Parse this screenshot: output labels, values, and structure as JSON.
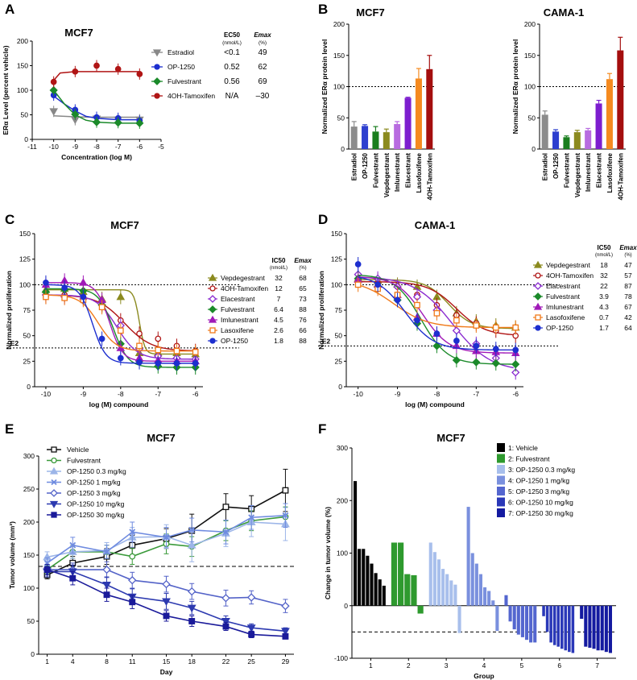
{
  "panels": {
    "A": {
      "letter": "A",
      "title": "MCF7",
      "type": "line",
      "xlabel": "Concentration (log M)",
      "ylabel": "ERα Level (percent vehicle)",
      "xlim": [
        -11,
        -5
      ],
      "ylim": [
        0,
        200
      ],
      "xticks": [
        -11,
        -10,
        -9,
        -8,
        -7,
        -6,
        -5
      ],
      "yticks": [
        0,
        50,
        100,
        150,
        200
      ],
      "header": {
        "ec50": "EC50",
        "ec50_unit": "(nmol/L)",
        "emax": "Emax",
        "emax_unit": "(%)"
      },
      "series": [
        {
          "name": "Estradiol",
          "ec50": "<0.1",
          "emax": "49",
          "color": "#888888",
          "marker": "triangle-down",
          "x": [
            -10,
            -9,
            -8,
            -7,
            -6
          ],
          "y": [
            57,
            40,
            42,
            40,
            40
          ],
          "fit": [
            [
              -10,
              48
            ],
            [
              -9,
              46
            ],
            [
              -8,
              45
            ],
            [
              -7,
              45
            ],
            [
              -6,
              45
            ]
          ]
        },
        {
          "name": "OP-1250",
          "ec50": "0.52",
          "emax": "62",
          "color": "#1d2fcf",
          "marker": "circle",
          "x": [
            -10,
            -9,
            -8,
            -7,
            -6
          ],
          "y": [
            90,
            60,
            45,
            43,
            38
          ],
          "fit": [
            [
              -10,
              88
            ],
            [
              -9.5,
              72
            ],
            [
              -9,
              58
            ],
            [
              -8.5,
              47
            ],
            [
              -8,
              43
            ],
            [
              -7,
              40
            ],
            [
              -6,
              40
            ]
          ]
        },
        {
          "name": "Fulvestrant",
          "ec50": "0.56",
          "emax": "69",
          "color": "#1b8a2a",
          "marker": "diamond",
          "x": [
            -10,
            -9,
            -8,
            -7,
            -6
          ],
          "y": [
            100,
            51,
            35,
            34,
            33
          ],
          "fit": [
            [
              -10,
              100
            ],
            [
              -9.5,
              72
            ],
            [
              -9,
              50
            ],
            [
              -8.5,
              39
            ],
            [
              -8,
              35
            ],
            [
              -7,
              33
            ],
            [
              -6,
              33
            ]
          ]
        },
        {
          "name": "4OH-Tamoxifen",
          "ec50": "N/A",
          "emax": "–30",
          "color": "#b01515",
          "marker": "circle",
          "x": [
            -10,
            -9,
            -8,
            -7,
            -6
          ],
          "y": [
            117,
            138,
            150,
            143,
            133
          ],
          "fit": [
            [
              -10,
              120
            ],
            [
              -9.7,
              135
            ],
            [
              -9,
              138
            ],
            [
              -6,
              138
            ]
          ]
        }
      ]
    },
    "B1": {
      "letter": "B",
      "title": "MCF7",
      "type": "bar",
      "ylabel": "Normalized ERα protein level",
      "ylim": [
        0,
        200
      ],
      "yticks": [
        0,
        50,
        100,
        150,
        200
      ],
      "reference_line": 100,
      "categories": [
        "Estradiol",
        "OP-1250",
        "Fulvestrant",
        "Vepdegestrant",
        "Imlunestrant",
        "Elacestrant",
        "Lasofoxifene",
        "4OH-Tamoxifen"
      ],
      "values": [
        36,
        37,
        28,
        27,
        40,
        82,
        113,
        128
      ],
      "errors": [
        8,
        2,
        8,
        5,
        4,
        1,
        16,
        22
      ],
      "colors": [
        "#8c8c8c",
        "#2d3fcf",
        "#1a7e1e",
        "#8b8a1f",
        "#b86be0",
        "#7d1ecf",
        "#f58a1f",
        "#a40e0e"
      ]
    },
    "B2": {
      "title": "CAMA-1",
      "type": "bar",
      "ylabel": "Normalized ERα protein level",
      "ylim": [
        0,
        200
      ],
      "yticks": [
        0,
        50,
        100,
        150,
        200
      ],
      "reference_line": 100,
      "categories": [
        "Estradiol",
        "OP-1250",
        "Fulvestrant",
        "Vepdegestrant",
        "Imlunestrant",
        "Elacestrant",
        "Lasofoxifene",
        "4OH-Tamoxifen"
      ],
      "values": [
        55,
        28,
        19,
        27,
        30,
        73,
        112,
        158
      ],
      "errors": [
        6,
        3,
        2,
        3,
        3,
        5,
        9,
        21
      ],
      "colors": [
        "#8c8c8c",
        "#2d3fcf",
        "#1a7e1e",
        "#8b8a1f",
        "#b86be0",
        "#7d1ecf",
        "#f58a1f",
        "#a40e0e"
      ]
    },
    "C": {
      "letter": "C",
      "title": "MCF7",
      "type": "line",
      "xlabel": "log (M) compound",
      "ylabel": "Normalized proliferation",
      "xlim": [
        -10.3,
        -5.8
      ],
      "ylim": [
        0,
        150
      ],
      "xticks": [
        -10,
        -9,
        -8,
        -7,
        -6
      ],
      "yticks": [
        0,
        25,
        50,
        75,
        100,
        125,
        150
      ],
      "ref_top": 100,
      "ref_e2": 38,
      "e2_label": "–E2",
      "header": {
        "ic50": "IC50",
        "ic50_unit": "(nmol/L)",
        "emax": "Emax",
        "emax_unit": "(%)"
      },
      "series": [
        {
          "name": "Vepdegestrant",
          "ic50": "32",
          "emax": "68",
          "color": "#8b8a1f",
          "marker": "triangle-up",
          "top": 95,
          "bottom": 32,
          "logec": -7.5,
          "hill": 6,
          "y": [
            95,
            96,
            93,
            86,
            88,
            33,
            33,
            33,
            32
          ]
        },
        {
          "name": "4OH-Tamoxifen",
          "ic50": "12",
          "emax": "65",
          "color": "#b01515",
          "marker": "circle-open",
          "top": 90,
          "bottom": 35,
          "logec": -7.9,
          "hill": 1.2,
          "y": [
            88,
            90,
            88,
            80,
            65,
            52,
            47,
            40,
            35
          ]
        },
        {
          "name": "Elacestrant",
          "ic50": "7",
          "emax": "73",
          "color": "#8a2bd0",
          "marker": "diamond-open",
          "top": 90,
          "bottom": 27,
          "logec": -8.1,
          "hill": 1.6,
          "y": [
            90,
            88,
            86,
            80,
            60,
            37,
            30,
            28,
            27
          ]
        },
        {
          "name": "Fulvestrant",
          "ic50": "6.4",
          "emax": "88",
          "color": "#1b8a2a",
          "marker": "diamond",
          "top": 96,
          "bottom": 19,
          "logec": -8.2,
          "hill": 2.2,
          "y": [
            93,
            95,
            94,
            80,
            42,
            25,
            20,
            19,
            19
          ]
        },
        {
          "name": "Imlunestrant",
          "ic50": "4.5",
          "emax": "76",
          "color": "#a01ab8",
          "marker": "triangle-up",
          "top": 102,
          "bottom": 25,
          "logec": -8.3,
          "hill": 2.5,
          "y": [
            100,
            104,
            102,
            85,
            38,
            28,
            26,
            25,
            25
          ]
        },
        {
          "name": "Lasoxifene",
          "ic50": "2.6",
          "emax": "66",
          "color": "#f07a1a",
          "marker": "square-open",
          "top": 90,
          "bottom": 35,
          "logec": -8.6,
          "hill": 1.8,
          "y": [
            88,
            87,
            85,
            78,
            55,
            40,
            36,
            35,
            34
          ]
        },
        {
          "name": "OP-1250",
          "ic50": "1.8",
          "emax": "88",
          "color": "#1d2fcf",
          "marker": "circle",
          "top": 100,
          "bottom": 23,
          "logec": -8.75,
          "hill": 2.5,
          "y": [
            102,
            97,
            88,
            47,
            28,
            24,
            23,
            23,
            23
          ]
        }
      ]
    },
    "D": {
      "letter": "D",
      "title": "CAMA-1",
      "type": "line",
      "xlabel": "log (M) compound",
      "ylabel": "Normalized proliferation",
      "xlim": [
        -10.3,
        -5.8
      ],
      "ylim": [
        0,
        150
      ],
      "xticks": [
        -10,
        -9,
        -8,
        -7,
        -6
      ],
      "yticks": [
        0,
        25,
        50,
        75,
        100,
        125,
        150
      ],
      "ref_top": 100,
      "ref_e2": 40,
      "e2_label": "–E2",
      "header": {
        "ic50": "IC50",
        "ic50_unit": "(nmol/L)",
        "emax": "Emax",
        "emax_unit": "(%)"
      },
      "series": [
        {
          "name": "Vepdegestrant",
          "ic50": "18",
          "emax": "47",
          "color": "#8b8a1f",
          "marker": "triangle-up",
          "top": 105,
          "bottom": 57,
          "logec": -7.7,
          "hill": 1.5,
          "y": [
            106,
            104,
            100,
            98,
            88,
            72,
            64,
            60,
            58
          ]
        },
        {
          "name": "4OH-Tamoxifen",
          "ic50": "32",
          "emax": "57",
          "color": "#b01515",
          "marker": "circle-open",
          "top": 103,
          "bottom": 50,
          "logec": -7.5,
          "hill": 1.2,
          "y": [
            104,
            100,
            98,
            90,
            80,
            70,
            62,
            55,
            50
          ]
        },
        {
          "name": "Elacestrant",
          "ic50": "22",
          "emax": "87",
          "color": "#8a2bd0",
          "marker": "diamond-open",
          "top": 108,
          "bottom": 15,
          "logec": -7.6,
          "hill": 0.9,
          "y": [
            110,
            106,
            98,
            88,
            75,
            55,
            42,
            28,
            14
          ]
        },
        {
          "name": "Fulvestrant",
          "ic50": "3.9",
          "emax": "78",
          "color": "#1b8a2a",
          "marker": "diamond",
          "top": 110,
          "bottom": 22,
          "logec": -8.4,
          "hill": 1.3,
          "y": [
            106,
            98,
            85,
            62,
            40,
            26,
            24,
            23,
            22
          ]
        },
        {
          "name": "Imlunestrant",
          "ic50": "4.3",
          "emax": "67",
          "color": "#a01ab8",
          "marker": "triangle-up",
          "top": 108,
          "bottom": 33,
          "logec": -8.35,
          "hill": 1.3,
          "y": [
            105,
            100,
            90,
            68,
            52,
            40,
            35,
            34,
            33
          ]
        },
        {
          "name": "Lasofoxifene",
          "ic50": "0.7",
          "emax": "42",
          "color": "#f07a1a",
          "marker": "square-open",
          "top": 105,
          "bottom": 58,
          "logec": -9.1,
          "hill": 1.0,
          "y": [
            100,
            96,
            90,
            80,
            72,
            65,
            60,
            58,
            58
          ]
        },
        {
          "name": "OP-1250",
          "ic50": "1.7",
          "emax": "64",
          "color": "#1d2fcf",
          "marker": "circle",
          "top": 110,
          "bottom": 36,
          "logec": -8.8,
          "hill": 1.2,
          "y": [
            120,
            100,
            85,
            65,
            52,
            45,
            40,
            37,
            36
          ]
        }
      ]
    },
    "E": {
      "letter": "E",
      "title": "MCF7",
      "type": "line",
      "xlabel": "Day",
      "ylabel": "Tumor volume (mm³)",
      "ylim": [
        0,
        300
      ],
      "yticks": [
        0,
        50,
        100,
        150,
        200,
        250,
        300
      ],
      "x": [
        1,
        4,
        8,
        11,
        15,
        18,
        22,
        25,
        29
      ],
      "xticks": [
        1,
        4,
        8,
        11,
        15,
        18,
        22,
        25,
        29
      ],
      "reference_line": 133,
      "series": [
        {
          "name": "Vehicle",
          "color": "#111111",
          "marker": "square-open",
          "y": [
            120,
            138,
            148,
            165,
            175,
            187,
            223,
            220,
            248
          ],
          "err": [
            6,
            10,
            12,
            15,
            15,
            25,
            20,
            20,
            32
          ]
        },
        {
          "name": "Fulvestrant",
          "color": "#3a9a3a",
          "marker": "circle-open",
          "y": [
            128,
            155,
            155,
            148,
            167,
            163,
            187,
            202,
            208
          ],
          "err": [
            6,
            10,
            10,
            12,
            15,
            15,
            15,
            15,
            15
          ]
        },
        {
          "name": "OP-1250 0.3 mg/kg",
          "color": "#9cb5e8",
          "marker": "triangle-up",
          "y": [
            147,
            155,
            157,
            177,
            178,
            165,
            183,
            200,
            197
          ],
          "err": [
            8,
            10,
            12,
            15,
            18,
            25,
            20,
            22,
            25
          ]
        },
        {
          "name": "OP-1250 1 mg/kg",
          "color": "#6f8be0",
          "marker": "cross",
          "y": [
            138,
            165,
            155,
            185,
            177,
            188,
            185,
            207,
            210
          ],
          "err": [
            8,
            12,
            10,
            15,
            15,
            18,
            18,
            18,
            18
          ]
        },
        {
          "name": "OP-1250 3 mg/kg",
          "color": "#5463c8",
          "marker": "diamond-open",
          "y": [
            128,
            128,
            128,
            112,
            106,
            95,
            85,
            86,
            73
          ],
          "err": [
            8,
            10,
            12,
            12,
            12,
            12,
            12,
            10,
            10
          ]
        },
        {
          "name": "OP-1250 10 mg/kg",
          "color": "#2d3ab0",
          "marker": "triangle-down",
          "y": [
            125,
            125,
            105,
            87,
            80,
            70,
            50,
            40,
            35
          ],
          "err": [
            8,
            10,
            12,
            12,
            12,
            10,
            8,
            6,
            5
          ]
        },
        {
          "name": "OP-1250 30 mg/kg",
          "color": "#1a1a9a",
          "marker": "square-x",
          "y": [
            128,
            115,
            90,
            79,
            58,
            50,
            42,
            30,
            27
          ],
          "err": [
            8,
            10,
            10,
            10,
            8,
            8,
            6,
            5,
            4
          ]
        }
      ]
    },
    "F": {
      "letter": "F",
      "title": "MCF7",
      "type": "bar",
      "xlabel": "Group",
      "ylabel": "Change in tumor volume (%)",
      "ylim": [
        -100,
        300
      ],
      "yticks": [
        -100,
        0,
        100,
        200,
        300
      ],
      "reference_line": -50,
      "groups": [
        {
          "label": "1",
          "name": "1: Vehicle",
          "color": "#000000",
          "values": [
            237,
            108,
            108,
            95,
            80,
            62,
            50,
            38
          ]
        },
        {
          "label": "2",
          "name": "2: Fulvestrant",
          "color": "#2e9a2e",
          "values": [
            120,
            120,
            60,
            58,
            -15
          ]
        },
        {
          "label": "3",
          "name": "3: OP-1250 0.3 mg/kg",
          "color": "#a8bfec",
          "values": [
            120,
            102,
            88,
            70,
            60,
            48,
            40,
            -52
          ]
        },
        {
          "label": "4",
          "name": "4: OP-1250 1 mg/kg",
          "color": "#7a90de",
          "values": [
            188,
            100,
            80,
            60,
            35,
            28,
            10,
            -48
          ]
        },
        {
          "label": "5",
          "name": "5: OP-1250 3 mg/kg",
          "color": "#5466cf",
          "values": [
            20,
            -30,
            -45,
            -55,
            -60,
            -65,
            -70,
            -70
          ]
        },
        {
          "label": "6",
          "name": "6: OP-1250 10 mg/kg",
          "color": "#2a38b8",
          "values": [
            -20,
            -50,
            -70,
            -75,
            -78,
            -82,
            -85,
            -88,
            -90
          ]
        },
        {
          "label": "7",
          "name": "7: OP-1250 30 mg/kg",
          "color": "#141aa0",
          "values": [
            -25,
            -78,
            -80,
            -82,
            -85,
            -85,
            -88,
            -90
          ]
        }
      ]
    }
  }
}
